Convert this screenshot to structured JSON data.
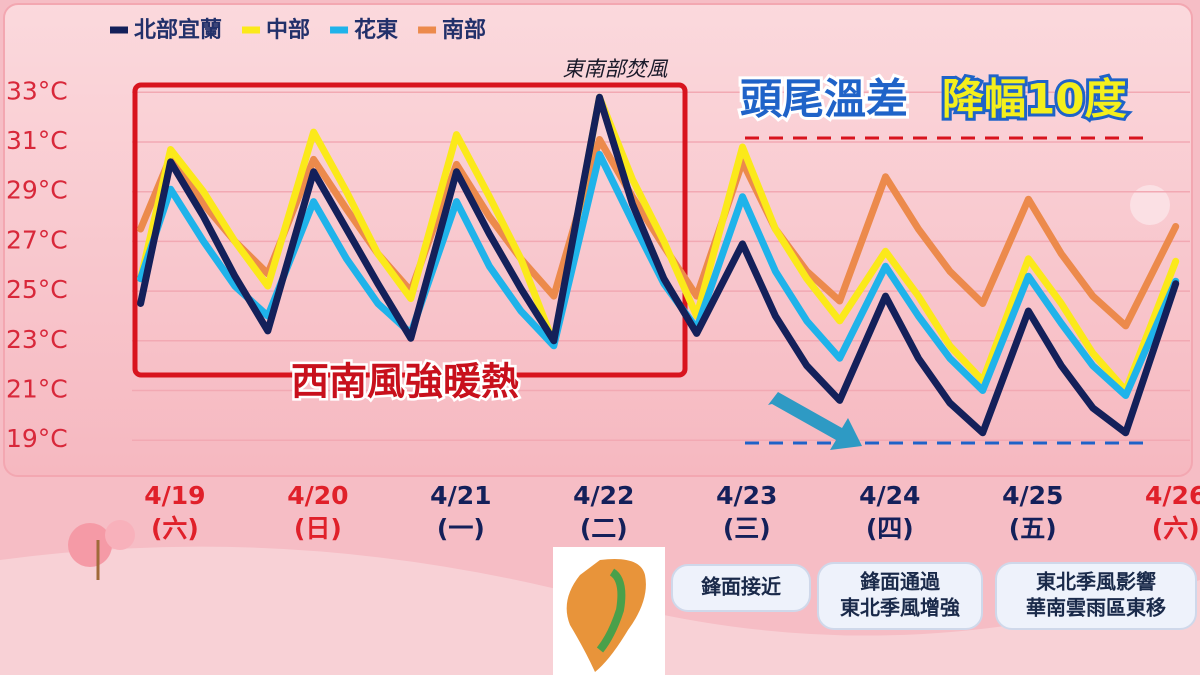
{
  "chart_data": {
    "type": "line",
    "title": "頭尾溫差",
    "title_highlight": "降幅10度",
    "annotation": "東南部焚風",
    "box_label": "西南風強暖熱",
    "notes": [
      [
        "鋒面接近"
      ],
      [
        "鋒面通過",
        "東北季風增強"
      ],
      [
        "東北季風影響",
        "華南雲雨區東移"
      ]
    ],
    "x": [
      -0.24,
      -0.03,
      0.2,
      0.42,
      0.65,
      0.97,
      1.2,
      1.42,
      1.65,
      1.97,
      2.2,
      2.42,
      2.65,
      2.97,
      3.2,
      3.42,
      3.65,
      3.97,
      4.2,
      4.42,
      4.65,
      4.97,
      5.2,
      5.42,
      5.65,
      5.97,
      6.2,
      6.42,
      6.65,
      7.0
    ],
    "series": [
      {
        "name": "北部宜蘭",
        "color": "#14205a",
        "values": [
          24.5,
          30.2,
          28.0,
          25.6,
          23.4,
          29.8,
          27.5,
          25.3,
          23.1,
          29.8,
          27.3,
          25.1,
          23.0,
          32.8,
          28.5,
          25.5,
          23.3,
          26.9,
          24.0,
          22.0,
          20.6,
          24.8,
          22.3,
          20.5,
          19.3,
          24.2,
          22.0,
          20.3,
          19.3,
          25.3
        ]
      },
      {
        "name": "中部",
        "color": "#fbe91a",
        "values": [
          25.5,
          30.7,
          29.0,
          27.0,
          25.2,
          31.4,
          29.0,
          26.5,
          24.7,
          31.3,
          28.8,
          26.3,
          22.9,
          32.8,
          29.5,
          27.0,
          24.0,
          30.8,
          27.5,
          25.5,
          23.8,
          26.6,
          24.8,
          22.8,
          21.4,
          26.3,
          24.5,
          22.5,
          21.0,
          26.2
        ]
      },
      {
        "name": "花東",
        "color": "#1fb3ea",
        "values": [
          25.5,
          29.1,
          27.0,
          25.2,
          24.0,
          28.6,
          26.3,
          24.5,
          23.3,
          28.6,
          26.0,
          24.2,
          22.8,
          30.5,
          27.8,
          25.3,
          23.5,
          28.8,
          25.8,
          23.8,
          22.3,
          26.0,
          24.0,
          22.3,
          21.0,
          25.6,
          23.7,
          22.0,
          20.8,
          25.4
        ]
      },
      {
        "name": "南部",
        "color": "#ec8a4c",
        "values": [
          27.5,
          30.4,
          28.5,
          27.0,
          25.7,
          30.3,
          28.3,
          26.5,
          25.0,
          30.1,
          28.0,
          26.3,
          24.8,
          31.1,
          28.8,
          26.8,
          24.8,
          30.2,
          27.5,
          25.8,
          24.6,
          29.6,
          27.5,
          25.8,
          24.5,
          28.7,
          26.5,
          24.8,
          23.6,
          27.6
        ]
      }
    ],
    "xlim": [
      -0.3,
      7.1
    ],
    "xticks": [
      {
        "value": 0,
        "label": "4/19"
      },
      {
        "value": 1,
        "label": "4/20"
      },
      {
        "value": 2,
        "label": "4/21"
      },
      {
        "value": 3,
        "label": "4/22"
      },
      {
        "value": 4,
        "label": "4/23"
      },
      {
        "value": 5,
        "label": "4/24"
      },
      {
        "value": 6,
        "label": "4/25"
      },
      {
        "value": 7,
        "label": "4/26"
      }
    ],
    "xtick_sublabels": [
      "(六)",
      "(日)",
      "(一)",
      "(二)",
      "(三)",
      "(四)",
      "(五)",
      "(六)"
    ],
    "xtick_colors": [
      "#e0202a",
      "#e0202a",
      "#14205a",
      "#14205a",
      "#14205a",
      "#14205a",
      "#14205a",
      "#e0202a"
    ],
    "ylim": [
      17.6,
      34.3
    ],
    "yticks": [
      {
        "value": 19,
        "label": "19°C"
      },
      {
        "value": 21,
        "label": "21°C"
      },
      {
        "value": 23,
        "label": "23°C"
      },
      {
        "value": 25,
        "label": "25°C"
      },
      {
        "value": 27,
        "label": "27°C"
      },
      {
        "value": 29,
        "label": "29°C"
      },
      {
        "value": 31,
        "label": "31°C"
      },
      {
        "value": 33,
        "label": "33°C"
      }
    ],
    "grid": true
  }
}
